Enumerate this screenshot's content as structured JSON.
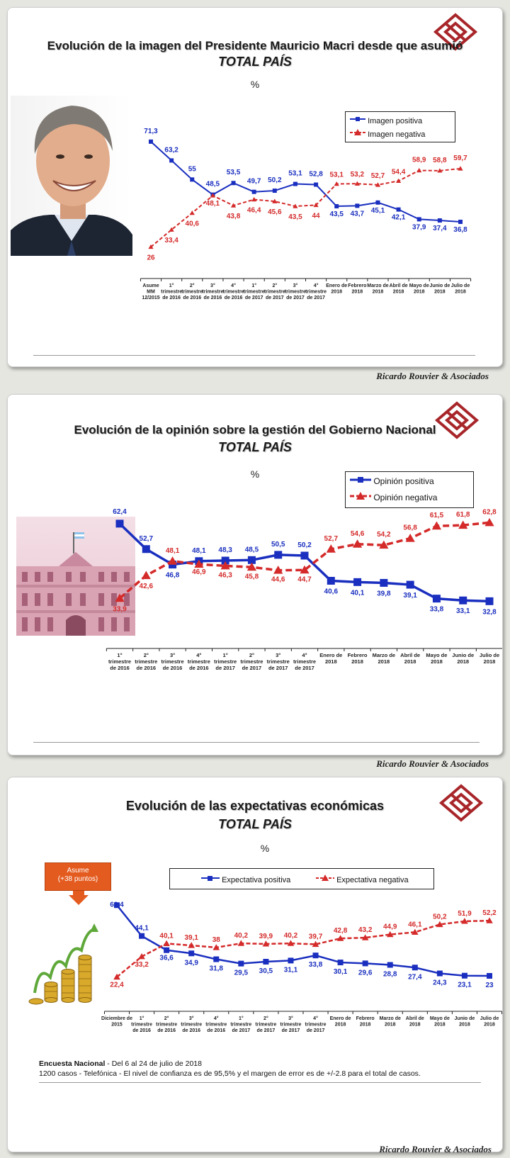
{
  "brand": {
    "credit": "Ricardo Rouvier & Asociados",
    "colors": {
      "positive": "#1a2fbf",
      "negative": "#d42a2a",
      "logo": "#a8262a"
    }
  },
  "categories_long": [
    "Asume MM 12/2015",
    "1° trimestre de 2016",
    "2° trimestre de 2016",
    "3° trimestre de 2016",
    "4° trimestre de 2016",
    "1° trimestre de 2017",
    "2° trimestre de 2017",
    "3° trimestre de 2017",
    "4° trimestre de 2017",
    "Enero de 2018",
    "Febrero 2018",
    "Marzo de 2018",
    "Abril de 2018",
    "Mayo de 2018",
    "Junio de 2018",
    "Julio de 2018"
  ],
  "chart_data": [
    {
      "type": "line",
      "title": "Evolución de la imagen del Presidente Mauricio Macri desde que asumió",
      "subtitle": "TOTAL PAÍS",
      "unit": "%",
      "categories": [
        "Asume MM 12/2015",
        "1° trimestre de 2016",
        "2° trimestre de 2016",
        "3° trimestre de 2016",
        "4° trimestre de 2016",
        "1° trimestre de 2017",
        "2° trimestre de 2017",
        "3° trimestre de 2017",
        "4° trimestre de 2017",
        "Enero de 2018",
        "Febrero 2018",
        "Marzo de 2018",
        "Abril de 2018",
        "Mayo de 2018",
        "Junio de 2018",
        "Julio de 2018"
      ],
      "series": [
        {
          "name": "Imagen positiva",
          "values": [
            71.3,
            63.2,
            55,
            48.5,
            53.5,
            49.7,
            50.2,
            53.1,
            52.8,
            43.5,
            43.7,
            45.1,
            42.1,
            37.9,
            37.4,
            36.8
          ],
          "labels": [
            "71,3",
            "63,2",
            "55",
            "48,5",
            "53,5",
            "49,7",
            "50,2",
            "53,1",
            "52,8",
            "43,5",
            "43,7",
            "45,1",
            "42,1",
            "37,9",
            "37,4",
            "36,8"
          ]
        },
        {
          "name": "Imagen negativa",
          "values": [
            26,
            33.4,
            40.6,
            48.1,
            43.8,
            46.4,
            45.6,
            43.5,
            44,
            53.1,
            53.2,
            52.7,
            54.4,
            58.9,
            58.8,
            59.7
          ],
          "labels": [
            "26",
            "33,4",
            "40,6",
            "48,1",
            "43,8",
            "46,4",
            "45,6",
            "43,5",
            "44",
            "53,1",
            "53,2",
            "52,7",
            "54,4",
            "58,9",
            "58,8",
            "59,7"
          ]
        }
      ],
      "legend": "top-right",
      "grid": false,
      "picture": "president-photo"
    },
    {
      "type": "line",
      "title": "Evolución de la opinión sobre la gestión del Gobierno Nacional",
      "subtitle": "TOTAL PAÍS",
      "unit": "%",
      "categories": [
        "1° trimestre de 2016",
        "2° trimestre de 2016",
        "3° trimestre de 2016",
        "4° trimestre de 2016",
        "1° trimestre de 2017",
        "2° trimestre de 2017",
        "3° trimestre de 2017",
        "4° trimestre de 2017",
        "Enero de 2018",
        "Febrero 2018",
        "Marzo de 2018",
        "Abril de 2018",
        "Mayo de 2018",
        "Junio de 2018",
        "Julio de 2018"
      ],
      "series": [
        {
          "name": "Opinión positiva",
          "values": [
            62.4,
            52.7,
            46.8,
            48.1,
            48.3,
            48.5,
            50.5,
            50.2,
            40.6,
            40.1,
            39.8,
            39.1,
            33.8,
            33.1,
            32.8
          ],
          "labels": [
            "62,4",
            "52,7",
            "46,8",
            "48,1",
            "48,3",
            "48,5",
            "50,5",
            "50,2",
            "40,6",
            "40,1",
            "39,8",
            "39,1",
            "33,8",
            "33,1",
            "32,8"
          ]
        },
        {
          "name": "Opinión negativa",
          "values": [
            33.9,
            42.6,
            48.1,
            46.9,
            46.3,
            45.8,
            44.6,
            44.7,
            52.7,
            54.6,
            54.2,
            56.8,
            61.5,
            61.8,
            62.8
          ],
          "labels": [
            "33,9",
            "42,6",
            "48,1",
            "46,9",
            "46,3",
            "45,8",
            "44,6",
            "44,7",
            "52,7",
            "54,6",
            "54,2",
            "56,8",
            "61,5",
            "61,8",
            "62,8"
          ]
        }
      ],
      "legend": "top-right",
      "grid": false,
      "picture": "casa-rosada"
    },
    {
      "type": "line",
      "title": "Evolución de las expectativas económicas",
      "subtitle": "TOTAL PAÍS",
      "unit": "%",
      "categories": [
        "Diciembre de 2015",
        "1° trimestre de 2016",
        "2° trimestre de 2016",
        "3° trimestre de 2016",
        "4° trimestre de 2016",
        "1° trimestre de 2017",
        "2° trimestre de 2017",
        "3° trimestre de 2017",
        "4° trimestre de 2017",
        "Enero de 2018",
        "Febrero 2018",
        "Marzo de 2018",
        "Abril de 2018",
        "Mayo de 2018",
        "Junio de 2018",
        "Julio de 2018"
      ],
      "series": [
        {
          "name": "Expectativa positiva",
          "values": [
            60.4,
            44.1,
            36.6,
            34.9,
            31.8,
            29.5,
            30.5,
            31.1,
            33.8,
            30.1,
            29.6,
            28.8,
            27.4,
            24.3,
            23.1,
            23
          ],
          "labels": [
            "60,4",
            "44,1",
            "36,6",
            "34,9",
            "31,8",
            "29,5",
            "30,5",
            "31,1",
            "33,8",
            "30,1",
            "29,6",
            "28,8",
            "27,4",
            "24,3",
            "23,1",
            "23"
          ]
        },
        {
          "name": "Expectativa negativa",
          "values": [
            22.4,
            33.2,
            40.1,
            39.1,
            38,
            40.2,
            39.9,
            40.2,
            39.7,
            42.8,
            43.2,
            44.9,
            46.1,
            50.2,
            51.9,
            52.2
          ],
          "labels": [
            "22,4",
            "33,2",
            "40,1",
            "39,1",
            "38",
            "40,2",
            "39,9",
            "40,2",
            "39,7",
            "42,8",
            "43,2",
            "44,9",
            "46,1",
            "50,2",
            "51,9",
            "52,2"
          ]
        }
      ],
      "legend": "top",
      "grid": false,
      "picture": "coin-stacks",
      "callout": {
        "line1": "Asume",
        "line2": "(+38 puntos)"
      }
    }
  ],
  "notes": {
    "survey_label": "Encuesta Nacional",
    "survey_dates": " - Del 6 al 24 de julio de 2018",
    "method": "1200 casos - Telefónica  - El nivel de confianza es de 95,5% y el margen de error es de +/-2.8 para el total de casos."
  }
}
